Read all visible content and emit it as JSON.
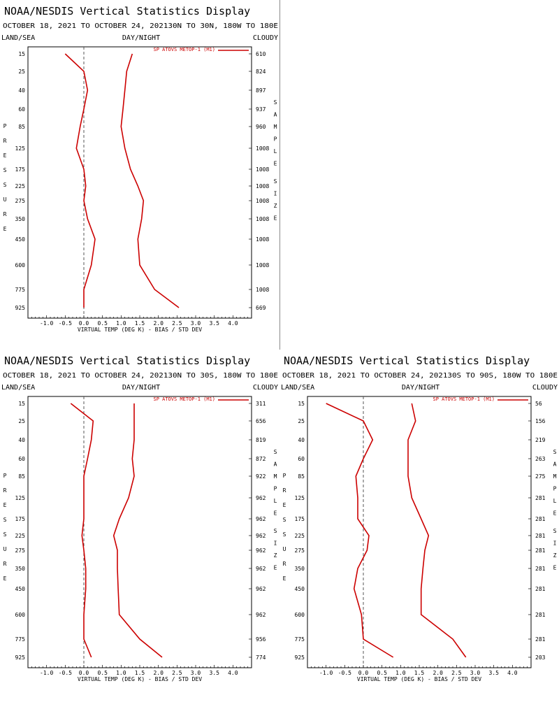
{
  "panels": [
    {
      "slot": "top-left",
      "title": "NOAA/NESDIS Vertical Statistics Display",
      "subtitle": "OCTOBER 18, 2021 TO OCTOBER 24, 2021",
      "region": "30N TO 30N, 180W TO 180E",
      "corner_left": "LAND/SEA",
      "corner_center": "DAY/NIGHT",
      "corner_right": "CLOUDY",
      "left_axis_label": "PRESSURE",
      "right_axis_label": "SAMPLE SIZE",
      "xlabel": "VIRTUAL TEMP (DEG K) - BIAS / STD DEV",
      "legend": "SP ATOVS METOP-1 (M1)",
      "sample_sizes": [
        "610",
        "824",
        "897",
        "937",
        "960",
        "1008",
        "1008",
        "1008",
        "1008",
        "1008",
        "1008",
        "1008",
        "1008",
        "669"
      ]
    },
    {
      "slot": "bottom-left",
      "title": "NOAA/NESDIS Vertical Statistics Display",
      "subtitle": "OCTOBER 18, 2021 TO OCTOBER 24, 2021",
      "region": "30N TO 30S, 180W TO 180E",
      "corner_left": "LAND/SEA",
      "corner_center": "DAY/NIGHT",
      "corner_right": "CLOUDY",
      "left_axis_label": "PRESSURE",
      "right_axis_label": "SAMPLE SIZE",
      "xlabel": "VIRTUAL TEMP (DEG K) - BIAS / STD DEV",
      "legend": "SP ATOVS METOP-1 (M1)",
      "sample_sizes": [
        "311",
        "656",
        "819",
        "872",
        "922",
        "962",
        "962",
        "962",
        "962",
        "962",
        "962",
        "962",
        "956",
        "774"
      ]
    },
    {
      "slot": "bottom-right",
      "title": "NOAA/NESDIS Vertical Statistics Display",
      "subtitle": "OCTOBER 18, 2021 TO OCTOBER 24, 2021",
      "region": "30S TO 90S, 180W TO 180E",
      "corner_left": "LAND/SEA",
      "corner_center": "DAY/NIGHT",
      "corner_right": "CLOUDY",
      "left_axis_label": "PRESSURE",
      "right_axis_label": "SAMPLE SIZE",
      "xlabel": "VIRTUAL TEMP (DEG K) - BIAS / STD DEV",
      "legend": "SP ATOVS METOP-1 (M1)",
      "sample_sizes": [
        "56",
        "156",
        "219",
        "263",
        "275",
        "281",
        "281",
        "281",
        "281",
        "281",
        "281",
        "281",
        "281",
        "203"
      ]
    }
  ],
  "colors": {
    "series": "#cc0000",
    "zero_line": "#555555",
    "axis": "#000000",
    "divider": "#8a8a8a"
  },
  "chart_data": [
    {
      "type": "line",
      "xlim": [
        -1.5,
        4.5
      ],
      "x_ticks": [
        "-1.0",
        "-0.5",
        "0.0",
        "0.5",
        "1.0",
        "1.5",
        "2.0",
        "2.5",
        "3.0",
        "3.5",
        "4.0"
      ],
      "pressure_levels": [
        "15",
        "25",
        "40",
        "60",
        "85",
        "125",
        "175",
        "225",
        "275",
        "350",
        "450",
        "600",
        "775",
        "925"
      ],
      "series": [
        {
          "role": "bias",
          "values": [
            -0.5,
            0.0,
            0.1,
            0.0,
            -0.1,
            -0.2,
            0.0,
            0.05,
            0.0,
            0.1,
            0.3,
            0.2,
            0.0,
            0.0
          ]
        },
        {
          "role": "std_dev",
          "values": [
            1.3,
            1.15,
            1.1,
            1.05,
            1.0,
            1.1,
            1.25,
            1.45,
            1.6,
            1.55,
            1.45,
            1.5,
            1.9,
            2.55
          ]
        }
      ]
    },
    {
      "type": "line",
      "xlim": [
        -1.5,
        4.5
      ],
      "x_ticks": [
        "-1.0",
        "-0.5",
        "0.0",
        "0.5",
        "1.0",
        "1.5",
        "2.0",
        "2.5",
        "3.0",
        "3.5",
        "4.0"
      ],
      "pressure_levels": [
        "15",
        "25",
        "40",
        "60",
        "85",
        "125",
        "175",
        "225",
        "275",
        "350",
        "450",
        "600",
        "775",
        "925"
      ],
      "series": [
        {
          "role": "bias",
          "values": [
            -0.35,
            0.25,
            0.2,
            0.1,
            0.0,
            0.0,
            0.0,
            -0.05,
            0.0,
            0.05,
            0.05,
            0.0,
            0.0,
            0.2
          ]
        },
        {
          "role": "std_dev",
          "values": [
            1.35,
            1.35,
            1.35,
            1.3,
            1.35,
            1.2,
            0.95,
            0.8,
            0.9,
            0.9,
            0.92,
            0.95,
            1.5,
            2.1
          ]
        }
      ]
    },
    {
      "type": "line",
      "xlim": [
        -1.5,
        4.5
      ],
      "x_ticks": [
        "-1.0",
        "-0.5",
        "0.0",
        "0.5",
        "1.0",
        "1.5",
        "2.0",
        "2.5",
        "3.0",
        "3.5",
        "4.0"
      ],
      "pressure_levels": [
        "15",
        "25",
        "40",
        "60",
        "85",
        "125",
        "175",
        "225",
        "275",
        "350",
        "450",
        "600",
        "775",
        "925"
      ],
      "series": [
        {
          "role": "bias",
          "values": [
            -1.0,
            0.0,
            0.25,
            0.0,
            -0.2,
            -0.15,
            -0.15,
            0.15,
            0.1,
            -0.15,
            -0.25,
            -0.05,
            0.0,
            0.8
          ]
        },
        {
          "role": "std_dev",
          "values": [
            1.3,
            1.4,
            1.2,
            1.2,
            1.2,
            1.3,
            1.55,
            1.75,
            1.65,
            1.6,
            1.55,
            1.55,
            2.4,
            2.75
          ]
        }
      ]
    }
  ]
}
